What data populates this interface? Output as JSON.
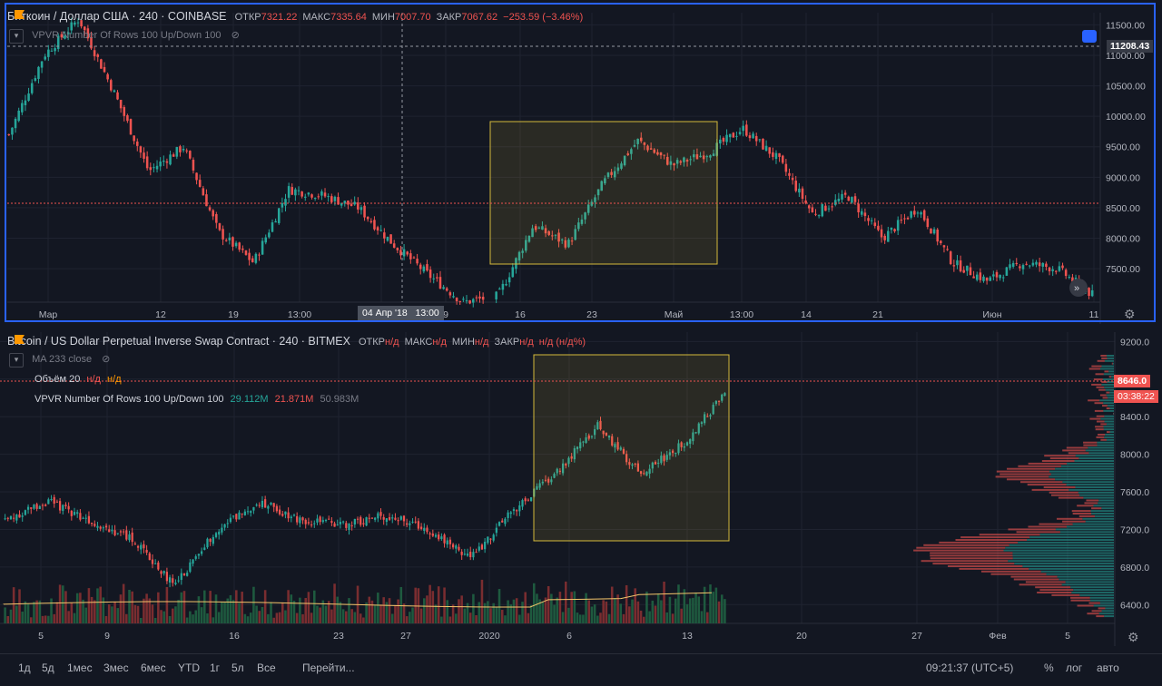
{
  "pane1": {
    "symbol": "Биткоин / Доллар США · 240 · COINBASE",
    "ohlc": [
      {
        "k": "ОТКР",
        "v": "7321.22"
      },
      {
        "k": "МАКС",
        "v": "7335.64"
      },
      {
        "k": "МИН",
        "v": "7007.70"
      },
      {
        "k": "ЗАКР",
        "v": "7067.62"
      },
      {
        "k": "",
        "v": "−253.59 (−3.46%)"
      }
    ],
    "indicator": "VPVR Number Of Rows 100 Up/Down 100",
    "cursor_price": "11208.43",
    "crosshair_date": "04 Апр '18",
    "crosshair_time": "13:00",
    "colors": {
      "up": "#26a69a",
      "down": "#ef5350",
      "border": "#2962ff",
      "box": "#d4b93b"
    }
  },
  "pane2": {
    "symbol": "Bitcoin / US Dollar Perpetual Inverse Swap Contract · 240 · BITMEX",
    "ohlc": [
      {
        "k": "ОТКР",
        "v": "н/д"
      },
      {
        "k": "МАКС",
        "v": "н/д"
      },
      {
        "k": "МИН",
        "v": "н/д"
      },
      {
        "k": "ЗАКР",
        "v": "н/д"
      },
      {
        "k": "",
        "v": "н/д (н/д%)"
      }
    ],
    "ma_label": "MA 233 close",
    "volume_label": "Объём 20",
    "volume_values": [
      "н/д",
      "н/д"
    ],
    "vpvr_label": "VPVR Number Of Rows 100 Up/Down 100",
    "vpvr_values": [
      "29.112M",
      "21.871M",
      "50.983M"
    ],
    "last_price": "8646.0",
    "countdown": "03:38:22"
  },
  "toolbar": {
    "ranges": [
      "1д",
      "5д",
      "1мес",
      "3мес",
      "6мес",
      "YTD",
      "1г",
      "5л",
      "Все"
    ],
    "goto": "Перейти...",
    "time": "09:21:37 (UTC+5)",
    "opts": [
      "%",
      "лог",
      "авто"
    ]
  },
  "chart_data": [
    {
      "type": "candlestick",
      "title": "Биткоин / Доллар США · 240 · COINBASE",
      "x_ticks": [
        "Мар",
        "12",
        "19",
        "13:00",
        "04 Апр '18",
        "9",
        "16",
        "23",
        "Май",
        "13:00",
        "14",
        "21",
        "Июн",
        "11"
      ],
      "y_ticks": [
        7500,
        8000,
        8500,
        9000,
        9500,
        10000,
        10500,
        11000,
        11500
      ],
      "ylim": [
        6950,
        11700
      ],
      "close_path": [
        {
          "x": "Мар",
          "y": 9700
        },
        {
          "x": "Мар",
          "y": 11000
        },
        {
          "x": "12",
          "y": 11600
        },
        {
          "x": "12",
          "y": 10400
        },
        {
          "x": "12",
          "y": 9100
        },
        {
          "x": "12",
          "y": 9500
        },
        {
          "x": "19",
          "y": 8100
        },
        {
          "x": "19",
          "y": 7600
        },
        {
          "x": "19",
          "y": 8800
        },
        {
          "x": "13:00",
          "y": 8700
        },
        {
          "x": "13:00",
          "y": 8500
        },
        {
          "x": "13:00",
          "y": 7900
        },
        {
          "x": "04 Апр '18",
          "y": 7400
        },
        {
          "x": "04 Апр '18",
          "y": 6950
        },
        {
          "x": "9",
          "y": 7050
        },
        {
          "x": "16",
          "y": 8200
        },
        {
          "x": "16",
          "y": 7900
        },
        {
          "x": "23",
          "y": 8900
        },
        {
          "x": "23",
          "y": 9600
        },
        {
          "x": "Май",
          "y": 9200
        },
        {
          "x": "Май",
          "y": 9400
        },
        {
          "x": "Май",
          "y": 9800
        },
        {
          "x": "13:00",
          "y": 9300
        },
        {
          "x": "14",
          "y": 8400
        },
        {
          "x": "14",
          "y": 8700
        },
        {
          "x": "21",
          "y": 8000
        },
        {
          "x": "21",
          "y": 8500
        },
        {
          "x": "21",
          "y": 7600
        },
        {
          "x": "Июн",
          "y": 7300
        },
        {
          "x": "Июн",
          "y": 7600
        },
        {
          "x": "11",
          "y": 7500
        },
        {
          "x": "11",
          "y": 7070
        }
      ]
    },
    {
      "type": "candlestick",
      "title": "Bitcoin / US Dollar Perpetual Inverse Swap Contract · 240 · BITMEX",
      "x_ticks": [
        "5",
        "9",
        "16",
        "23",
        "27",
        "2020",
        "6",
        "13",
        "20",
        "27",
        "Фев",
        "5"
      ],
      "y_ticks": [
        6400,
        6800,
        7200,
        7600,
        8000,
        8400,
        8800,
        9200
      ],
      "ylim": [
        6200,
        9300
      ],
      "close_path": [
        {
          "x": "5",
          "y": 7300
        },
        {
          "x": "9",
          "y": 7500
        },
        {
          "x": "9",
          "y": 7300
        },
        {
          "x": "16",
          "y": 7100
        },
        {
          "x": "16",
          "y": 6600
        },
        {
          "x": "16",
          "y": 7200
        },
        {
          "x": "23",
          "y": 7500
        },
        {
          "x": "23",
          "y": 7300
        },
        {
          "x": "27",
          "y": 7250
        },
        {
          "x": "27",
          "y": 7350
        },
        {
          "x": "2020",
          "y": 7200
        },
        {
          "x": "2020",
          "y": 6900
        },
        {
          "x": "2020",
          "y": 7400
        },
        {
          "x": "6",
          "y": 7800
        },
        {
          "x": "6",
          "y": 8300
        },
        {
          "x": "6",
          "y": 7800
        },
        {
          "x": "13",
          "y": 8100
        },
        {
          "x": "13",
          "y": 8646
        }
      ],
      "volume_profile": "VPVR Number Of Rows 100 Up/Down 100"
    }
  ]
}
